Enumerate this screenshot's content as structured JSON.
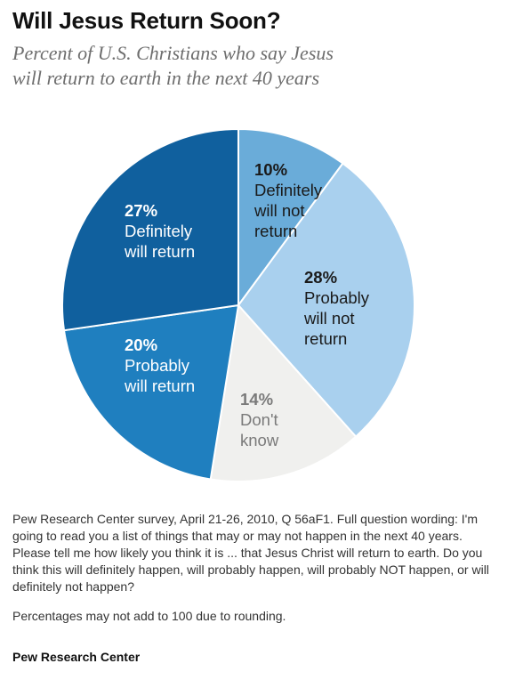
{
  "header": {
    "title": "Will Jesus Return Soon?",
    "subtitle_lines": [
      "Percent of U.S. Christians who say Jesus",
      "will return to earth in the next 40 years"
    ]
  },
  "chart_data": {
    "type": "pie",
    "slices": [
      {
        "label_lines": [
          "Definitely",
          "will not",
          "return"
        ],
        "value": 10,
        "value_label": "10%",
        "color": "#6aacd9",
        "label_color": "#1a1a1a"
      },
      {
        "label_lines": [
          "Probably",
          "will not",
          "return"
        ],
        "value": 28,
        "value_label": "28%",
        "color": "#a9d0ee",
        "label_color": "#1a1a1a"
      },
      {
        "label_lines": [
          "Don't",
          "know"
        ],
        "value": 14,
        "value_label": "14%",
        "color": "#f0f0ee",
        "label_color": "#7a7a7a"
      },
      {
        "label_lines": [
          "Probably",
          "will return"
        ],
        "value": 20,
        "value_label": "20%",
        "color": "#1f7fbf",
        "label_color": "#ffffff"
      },
      {
        "label_lines": [
          "Definitely",
          "will return"
        ],
        "value": 27,
        "value_label": "27%",
        "color": "#10609e",
        "label_color": "#ffffff"
      }
    ]
  },
  "notes": {
    "survey": "Pew Research Center survey, April 21-26, 2010, Q 56aF1. Full question wording: I'm going to read you a list of things that may or may not happen in the next 40 years. Please tell me how likely you think it is ... that Jesus Christ will return to earth. Do you think this will definitely happen, will probably happen, will probably NOT happen, or will definitely not happen?",
    "rounding": "Percentages may not add to 100 due to rounding."
  },
  "source": "Pew Research Center"
}
